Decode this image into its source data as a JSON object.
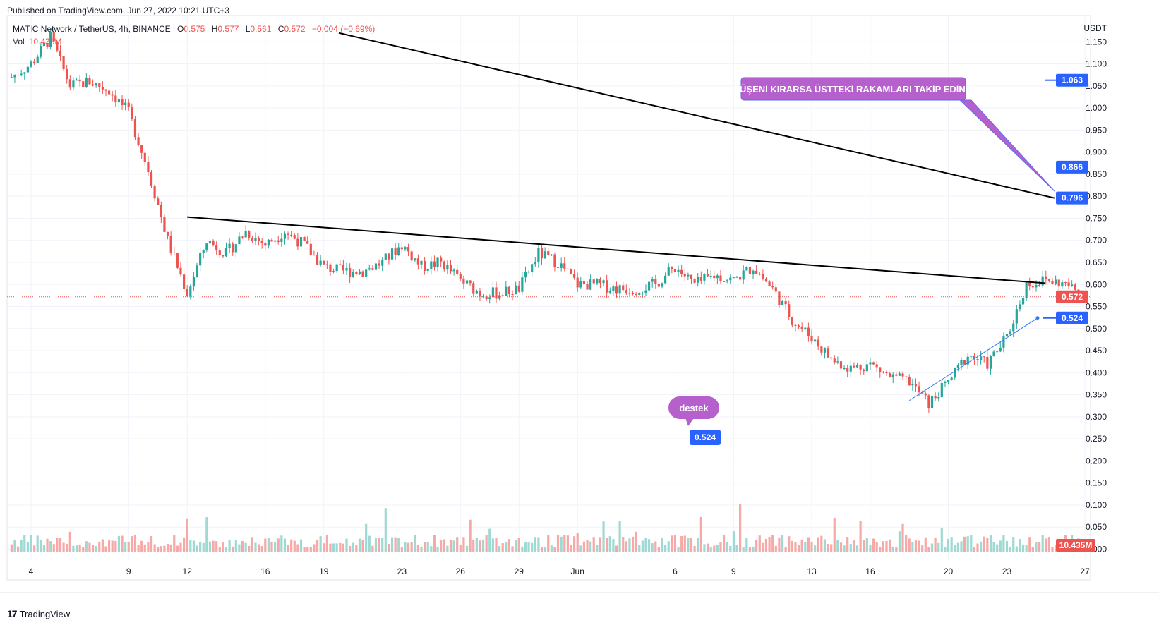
{
  "header": {
    "published": "Published on TradingView.com, Jun 27, 2022 10:21 UTC+3"
  },
  "legend": {
    "symbol": "MATIC Network / TetherUS, 4h, BINANCE",
    "o_label": "O",
    "o_value": "0.575",
    "h_label": "H",
    "h_value": "0.577",
    "l_label": "L",
    "l_value": "0.561",
    "c_label": "C",
    "c_value": "0.572",
    "change": "−0.004 (−0.69%)",
    "vol_label": "Vol",
    "vol_value": "10.435M"
  },
  "footer": {
    "brand": "TradingView"
  },
  "colors": {
    "up": "#26a69a",
    "down": "#ef5350",
    "up_vol": "#9fd9d3",
    "down_vol": "#f7a9a7",
    "trendline": "#000000",
    "support_line": "#3179f5",
    "last_price": "#ef5350",
    "tag_blue": "#2962ff",
    "note_purple": "#b660cd"
  },
  "chart_data": {
    "type": "candlestick",
    "quote_currency": "USDT",
    "ylim": [
      -0.02,
      1.17
    ],
    "y_ticks": [
      "1.150",
      "1.100",
      "1.050",
      "1.000",
      "0.950",
      "0.900",
      "0.850",
      "0.800",
      "0.750",
      "0.700",
      "0.650",
      "0.600",
      "0.550",
      "0.500",
      "0.450",
      "0.400",
      "0.350",
      "0.300",
      "0.250",
      "0.200",
      "0.150",
      "0.100",
      "0.050",
      "−0.000"
    ],
    "x_ticks": [
      "4",
      "9",
      "12",
      "16",
      "19",
      "23",
      "26",
      "29",
      "Jun",
      "6",
      "9",
      "13",
      "16",
      "20",
      "23",
      "27"
    ],
    "last_price": 0.572,
    "volume_last": "10.435M",
    "price_tags": [
      {
        "label": "1.063",
        "value": 1.063
      },
      {
        "label": "0.866",
        "value": 0.866
      },
      {
        "label": "0.796",
        "value": 0.796
      },
      {
        "label": "0.524",
        "value": 0.524
      }
    ],
    "trendlines": [
      {
        "name": "long-downtrend",
        "from": {
          "x": "May 10",
          "y": 1.17
        },
        "to": {
          "x": "Jun 27",
          "y": 0.796
        }
      },
      {
        "name": "short-downtrend",
        "from": {
          "x": "May 12",
          "y": 0.753
        },
        "to": {
          "x": "Jun 27",
          "y": 0.603
        }
      },
      {
        "name": "support",
        "from": {
          "x": "Jun 18",
          "y": 0.337
        },
        "to": {
          "x": "Jun 27",
          "y": 0.524
        }
      }
    ],
    "close_path": [
      [
        "May 3",
        1.07
      ],
      [
        "May 4",
        1.1
      ],
      [
        "May 5",
        1.16
      ],
      [
        "May 6",
        1.05
      ],
      [
        "May 7",
        1.06
      ],
      [
        "May 8",
        1.04
      ],
      [
        "May 9",
        0.99
      ],
      [
        "May 10",
        0.86
      ],
      [
        "May 11",
        0.7
      ],
      [
        "May 12",
        0.58
      ],
      [
        "May 13",
        0.7
      ],
      [
        "May 14",
        0.67
      ],
      [
        "May 15",
        0.72
      ],
      [
        "May 16",
        0.69
      ],
      [
        "May 17",
        0.72
      ],
      [
        "May 18",
        0.69
      ],
      [
        "May 19",
        0.64
      ],
      [
        "May 20",
        0.63
      ],
      [
        "May 21",
        0.63
      ],
      [
        "May 22",
        0.65
      ],
      [
        "May 23",
        0.69
      ],
      [
        "May 24",
        0.64
      ],
      [
        "May 25",
        0.65
      ],
      [
        "May 26",
        0.61
      ],
      [
        "May 27",
        0.58
      ],
      [
        "May 28",
        0.58
      ],
      [
        "May 29",
        0.59
      ],
      [
        "May 30",
        0.67
      ],
      [
        "May 31",
        0.65
      ],
      [
        "Jun 1",
        0.6
      ],
      [
        "Jun 2",
        0.6
      ],
      [
        "Jun 3",
        0.59
      ],
      [
        "Jun 4",
        0.59
      ],
      [
        "Jun 5",
        0.6
      ],
      [
        "Jun 6",
        0.64
      ],
      [
        "Jun 7",
        0.6
      ],
      [
        "Jun 8",
        0.62
      ],
      [
        "Jun 9",
        0.61
      ],
      [
        "Jun 10",
        0.64
      ],
      [
        "Jun 11",
        0.59
      ],
      [
        "Jun 12",
        0.52
      ],
      [
        "Jun 13",
        0.48
      ],
      [
        "Jun 14",
        0.43
      ],
      [
        "Jun 15",
        0.41
      ],
      [
        "Jun 16",
        0.42
      ],
      [
        "Jun 17",
        0.39
      ],
      [
        "Jun 18",
        0.38
      ],
      [
        "Jun 19",
        0.33
      ],
      [
        "Jun 20",
        0.38
      ],
      [
        "Jun 21",
        0.44
      ],
      [
        "Jun 22",
        0.42
      ],
      [
        "Jun 23",
        0.48
      ],
      [
        "Jun 24",
        0.6
      ],
      [
        "Jun 25",
        0.61
      ],
      [
        "Jun 26",
        0.6
      ],
      [
        "Jun 27",
        0.572
      ]
    ],
    "annotations": [
      {
        "text": "DÜŞENİ KIRARSA ÜSTTEKİ RAKAMLARI TAKİP EDİNİZ",
        "points_to": 0.796
      },
      {
        "text": "destek",
        "points_to": 0.524
      },
      {
        "text": "0.524",
        "points_to": 0.524
      }
    ]
  }
}
